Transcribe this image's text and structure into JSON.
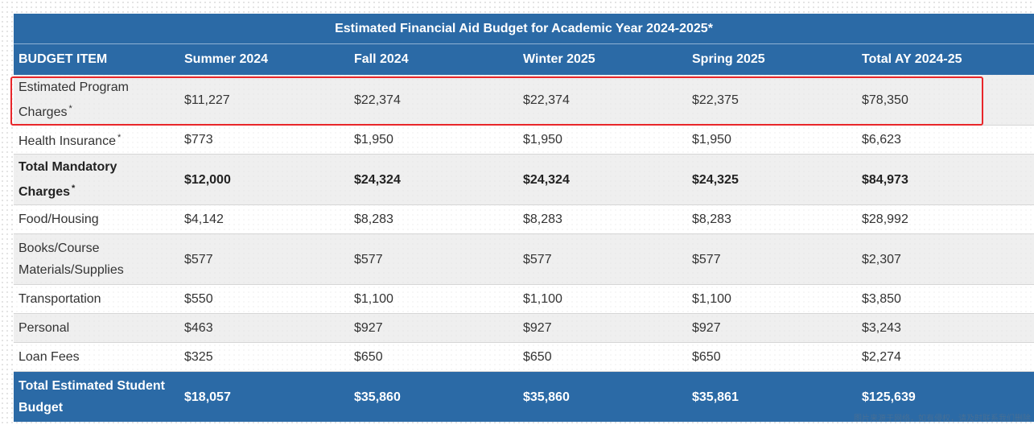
{
  "table": {
    "title": "Estimated Financial Aid Budget for Academic Year 2024-2025*",
    "headers": [
      "BUDGET ITEM",
      "Summer 2024",
      "Fall 2024",
      "Winter 2025",
      "Spring 2025",
      "Total AY 2024-25"
    ],
    "rows": [
      {
        "label": "Estimated Program Charges",
        "asterisk": "*",
        "values": [
          "$11,227",
          "$22,374",
          "$22,374",
          "$22,375",
          "$78,350"
        ]
      },
      {
        "label": "Health Insurance",
        "asterisk": "*",
        "values": [
          "$773",
          "$1,950",
          "$1,950",
          "$1,950",
          "$6,623"
        ]
      },
      {
        "label": "Total Mandatory Charges",
        "asterisk": "*",
        "values": [
          "$12,000",
          "$24,324",
          "$24,324",
          "$24,325",
          "$84,973"
        ]
      },
      {
        "label": "Food/Housing",
        "values": [
          "$4,142",
          "$8,283",
          "$8,283",
          "$8,283",
          "$28,992"
        ]
      },
      {
        "label": "Books/Course Materials/Supplies",
        "values": [
          "$577",
          "$577",
          "$577",
          "$577",
          "$2,307"
        ]
      },
      {
        "label": "Transportation",
        "values": [
          "$550",
          "$1,100",
          "$1,100",
          "$1,100",
          "$3,850"
        ]
      },
      {
        "label": "Personal",
        "values": [
          "$463",
          "$927",
          "$927",
          "$927",
          "$3,243"
        ]
      },
      {
        "label": "Loan Fees",
        "values": [
          "$325",
          "$650",
          "$650",
          "$650",
          "$2,274"
        ]
      }
    ],
    "total": {
      "label": "Total Estimated Student Budget",
      "values": [
        "$18,057",
        "$35,860",
        "$35,860",
        "$35,861",
        "$125,639"
      ]
    }
  },
  "watermark": "图片来源于网络，如有侵权，请及时联系我们删除",
  "colors": {
    "header_bg": "#2b6aa6",
    "highlight": "#e8262a"
  }
}
